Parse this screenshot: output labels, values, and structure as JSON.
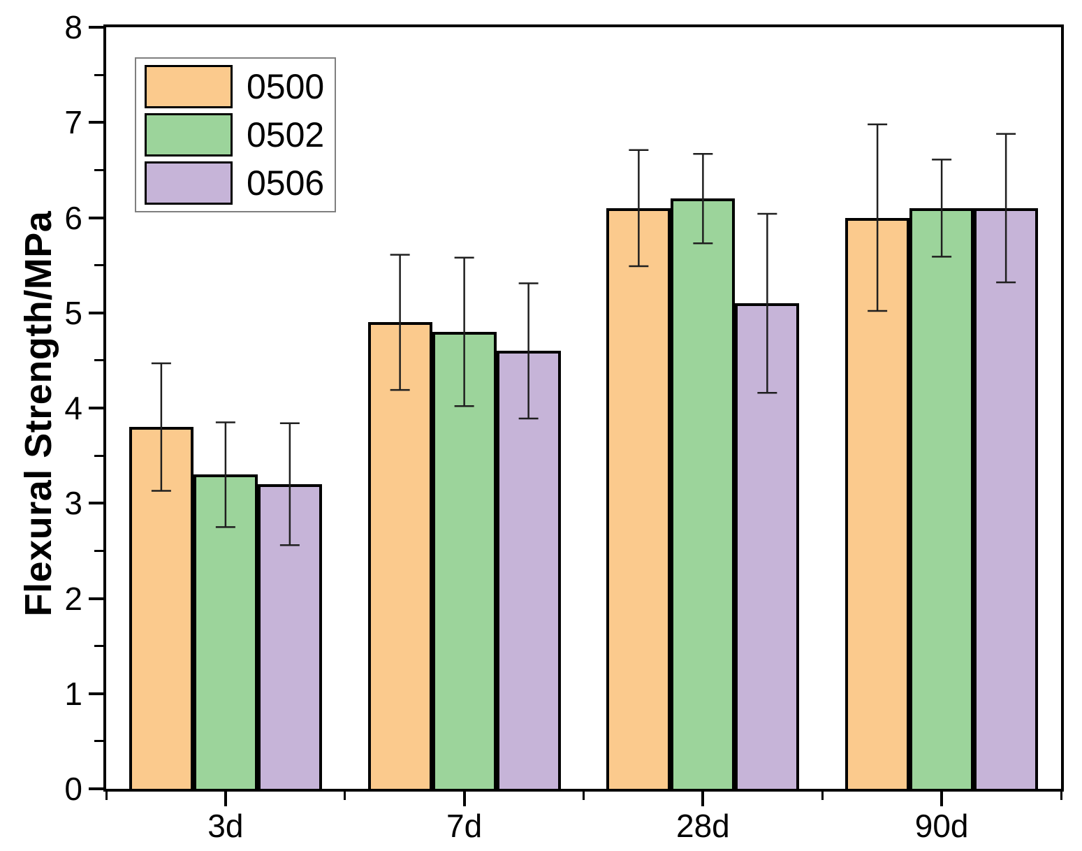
{
  "chart_data": {
    "type": "bar",
    "title": "",
    "xlabel": "",
    "ylabel": "Flexural Strength/MPa",
    "ylim": [
      0,
      8
    ],
    "y_major_step": 1,
    "y_minor_step": 0.5,
    "y_tick_labels": [
      "0",
      "1",
      "2",
      "3",
      "4",
      "5",
      "6",
      "7",
      "8"
    ],
    "categories": [
      "3d",
      "7d",
      "28d",
      "90d"
    ],
    "series": [
      {
        "name": "0500",
        "color": "#FBCA8D",
        "values": [
          3.8,
          4.9,
          6.1,
          6.0
        ],
        "errors": [
          0.67,
          0.71,
          0.61,
          0.98
        ]
      },
      {
        "name": "0502",
        "color": "#9CD49B",
        "values": [
          3.3,
          4.8,
          6.2,
          6.1
        ],
        "errors": [
          0.55,
          0.78,
          0.47,
          0.51
        ]
      },
      {
        "name": "0506",
        "color": "#C6B4D8",
        "values": [
          3.2,
          4.6,
          5.1,
          6.1
        ],
        "errors": [
          0.64,
          0.71,
          0.94,
          0.78
        ]
      }
    ],
    "legend_position": "top-left",
    "grid": false
  },
  "styles": {
    "bar_border_color": "#000000",
    "error_bar_color": "#1F1F1F",
    "axis_color": "#000000",
    "legend_border_color": "#7F7F7F",
    "background": "#FFFFFF"
  },
  "geometry_note": "bar chart with error bars, grouped by age"
}
